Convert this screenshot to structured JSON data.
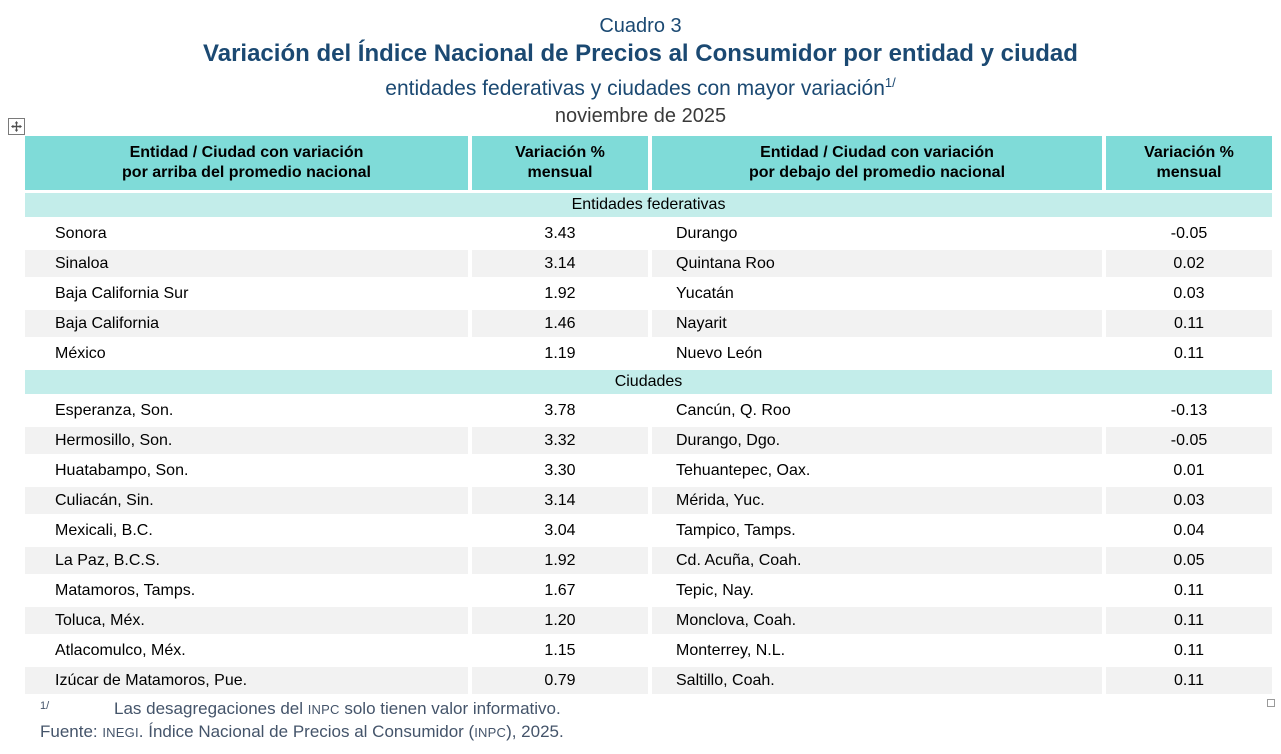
{
  "title_block": {
    "cuadro_label": "Cuadro 3",
    "main_title": "Variación del Índice Nacional de Precios al Consumidor por entidad y ciudad",
    "subtitle": "entidades federativas y ciudades con mayor variación",
    "subtitle_superscript": "1/",
    "period": "noviembre de 2025"
  },
  "table": {
    "columns": [
      {
        "line1": "Entidad / Ciudad con variación",
        "line2": "por arriba del promedio nacional"
      },
      {
        "line1": "Variación %",
        "line2": "mensual"
      },
      {
        "line1": "Entidad / Ciudad con variación",
        "line2": "por debajo del promedio nacional"
      },
      {
        "line1": "Variación %",
        "line2": "mensual"
      }
    ],
    "sections": [
      {
        "label": "Entidades federativas",
        "rows": [
          {
            "above_name": "Sonora",
            "above_value": "3.43",
            "below_name": "Durango",
            "below_value": "-0.05"
          },
          {
            "above_name": "Sinaloa",
            "above_value": "3.14",
            "below_name": "Quintana Roo",
            "below_value": "0.02"
          },
          {
            "above_name": "Baja California Sur",
            "above_value": "1.92",
            "below_name": "Yucatán",
            "below_value": "0.03"
          },
          {
            "above_name": "Baja California",
            "above_value": "1.46",
            "below_name": "Nayarit",
            "below_value": "0.11"
          },
          {
            "above_name": "México",
            "above_value": "1.19",
            "below_name": "Nuevo León",
            "below_value": "0.11"
          }
        ]
      },
      {
        "label": "Ciudades",
        "rows": [
          {
            "above_name": "Esperanza, Son.",
            "above_value": "3.78",
            "below_name": "Cancún, Q. Roo",
            "below_value": "-0.13"
          },
          {
            "above_name": "Hermosillo, Son.",
            "above_value": "3.32",
            "below_name": "Durango, Dgo.",
            "below_value": "-0.05"
          },
          {
            "above_name": "Huatabampo, Son.",
            "above_value": "3.30",
            "below_name": "Tehuantepec, Oax.",
            "below_value": "0.01"
          },
          {
            "above_name": "Culiacán, Sin.",
            "above_value": "3.14",
            "below_name": "Mérida, Yuc.",
            "below_value": "0.03"
          },
          {
            "above_name": "Mexicali, B.C.",
            "above_value": "3.04",
            "below_name": "Tampico, Tamps.",
            "below_value": "0.04"
          },
          {
            "above_name": "La Paz, B.C.S.",
            "above_value": "1.92",
            "below_name": "Cd. Acuña, Coah.",
            "below_value": "0.05"
          },
          {
            "above_name": "Matamoros, Tamps.",
            "above_value": "1.67",
            "below_name": "Tepic, Nay.",
            "below_value": "0.11"
          },
          {
            "above_name": "Toluca, Méx.",
            "above_value": "1.20",
            "below_name": "Monclova, Coah.",
            "below_value": "0.11"
          },
          {
            "above_name": "Atlacomulco, Méx.",
            "above_value": "1.15",
            "below_name": "Monterrey, N.L.",
            "below_value": "0.11"
          },
          {
            "above_name": "Izúcar de Matamoros, Pue.",
            "above_value": "0.79",
            "below_name": "Saltillo, Coah.",
            "below_value": "0.11"
          }
        ]
      }
    ]
  },
  "footnotes": {
    "note_marker": "1/",
    "note_before": "Las desagregaciones del ",
    "note_inpc": "INPC",
    "note_after": " solo tienen valor informativo.",
    "fuente_prefix": "Fuente: ",
    "fuente_inegi": "INEGI",
    "fuente_middle": ". Índice Nacional de Precios al Consumidor (",
    "fuente_inpc": "INPC",
    "fuente_suffix": "), 2025."
  },
  "icons": {
    "move_handle": "move-arrows-icon",
    "resize_handle": "resize-handle-icon"
  },
  "colors": {
    "header_teal": "#7fdbd8",
    "section_teal": "#c3edea",
    "row_alt": "#f2f2f2",
    "title_navy": "#1b4972",
    "date_gray": "#3a3a3a",
    "footnote_slate": "#44546a"
  }
}
